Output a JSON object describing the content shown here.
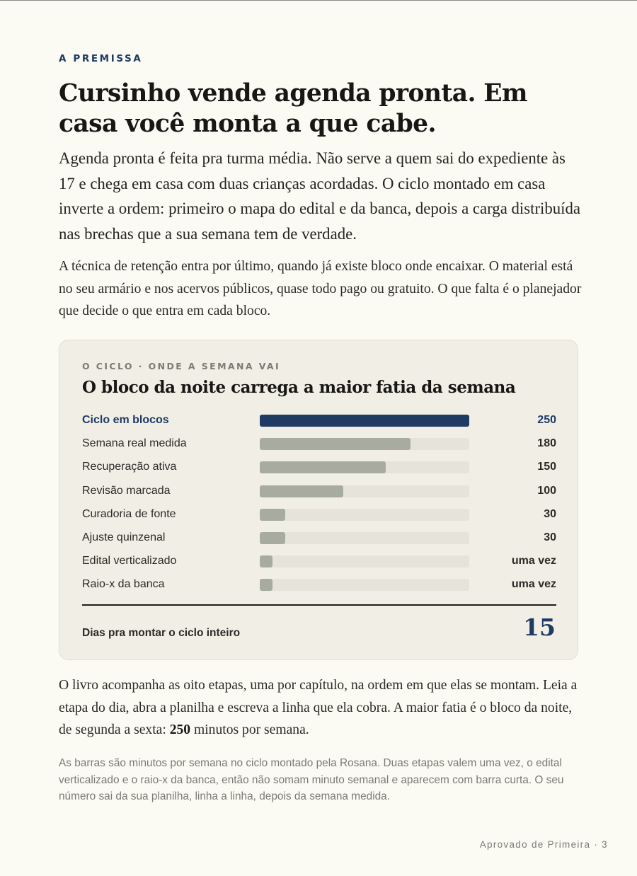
{
  "kicker": "A PREMISSA",
  "headline": "Cursinho vende agenda pronta. Em casa você monta a que cabe.",
  "lead": "Agenda pronta é feita pra turma média. Não serve a quem sai do expediente às 17 e chega em casa com duas crianças acordadas. O ciclo montado em casa inverte a ordem: primeiro o mapa do edital e da banca, depois a carga distribuída nas brechas que a sua semana tem de verdade.",
  "paragraph2": "A técnica de retenção entra por último, quando já existe bloco onde encaixar. O material está no seu armário e nos acervos públicos, quase todo pago ou gratuito. O que falta é o planejador que decide o que entra em cada bloco.",
  "card": {
    "kicker": "O CICLO · ONDE A SEMANA VAI",
    "title": "O bloco da noite carrega a maior fatia da semana",
    "total_label": "Dias pra montar o ciclo inteiro",
    "total_value": "15"
  },
  "chart_data": {
    "type": "bar",
    "orientation": "horizontal",
    "title": "O bloco da noite carrega a maior fatia da semana",
    "unit": "minutos por semana",
    "xlim": [
      0,
      250
    ],
    "highlight_color": "#1f3a63",
    "bar_color": "#a8aca0",
    "track_color": "#e6e4da",
    "rows": [
      {
        "label": "Ciclo em blocos",
        "value": 250,
        "display": "250",
        "highlight": true
      },
      {
        "label": "Semana real medida",
        "value": 180,
        "display": "180",
        "highlight": false
      },
      {
        "label": "Recuperação ativa",
        "value": 150,
        "display": "150",
        "highlight": false
      },
      {
        "label": "Revisão marcada",
        "value": 100,
        "display": "100",
        "highlight": false
      },
      {
        "label": "Curadoria de fonte",
        "value": 30,
        "display": "30",
        "highlight": false
      },
      {
        "label": "Ajuste quinzenal",
        "value": 30,
        "display": "30",
        "highlight": false
      },
      {
        "label": "Edital verticalizado",
        "value": 15,
        "display": "uma vez",
        "highlight": false
      },
      {
        "label": "Raio-x da banca",
        "value": 15,
        "display": "uma vez",
        "highlight": false
      }
    ]
  },
  "paragraph3": {
    "before": "O livro acompanha as oito etapas, uma por capítulo, na ordem em que elas se montam. Leia a etapa do dia, abra a planilha e escreva a linha que ela cobra. A maior fatia é o bloco da noite, de segunda a sexta: ",
    "emphasis": "250",
    "after": " minutos por semana."
  },
  "note": "As barras são minutos por semana no ciclo montado pela Rosana. Duas etapas valem uma vez, o edital verticalizado e o raio-x da banca, então não somam minuto semanal e aparecem com barra curta. O seu número sai da sua planilha, linha a linha, depois da semana medida.",
  "footer": "Aprovado de Primeira · 3"
}
